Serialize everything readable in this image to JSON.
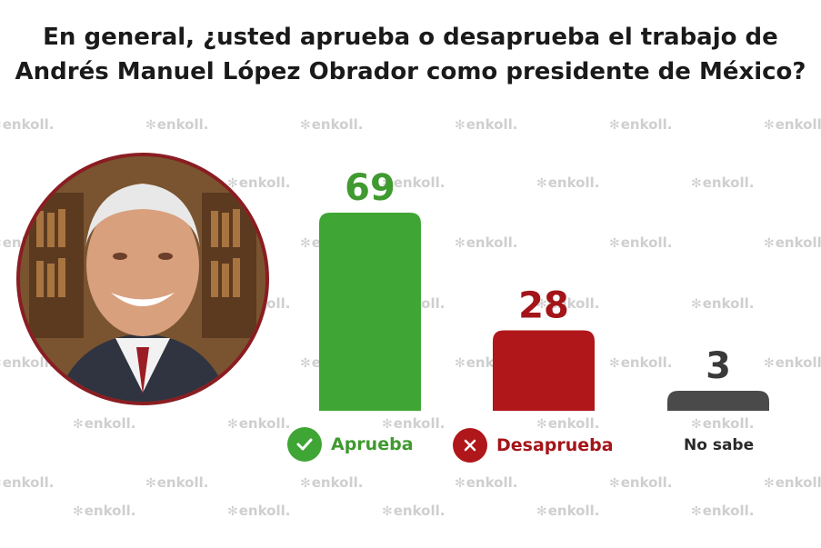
{
  "title": "En general, ¿usted aprueba o desaprueba el trabajo de Andrés Manuel López Obrador como presidente de México?",
  "watermark": "enkoll.",
  "chart_data": {
    "type": "bar",
    "title": "En general, ¿usted aprueba o desaprueba el trabajo de Andrés Manuel López Obrador como presidente de México?",
    "categories": [
      "Aprueba",
      "Desaprueba",
      "No sabe"
    ],
    "values": [
      69,
      28,
      3
    ],
    "data_labels": [
      "69",
      "28",
      "3"
    ],
    "colors": [
      "#3fa535",
      "#b0171a",
      "#4a4a4a"
    ],
    "label_colors": [
      "#3f9a2f",
      "#a31519",
      "#3a3a3a"
    ],
    "legend_icons": [
      "check-icon",
      "x-icon",
      ""
    ],
    "grid": false,
    "ylim": [
      0,
      69
    ]
  }
}
